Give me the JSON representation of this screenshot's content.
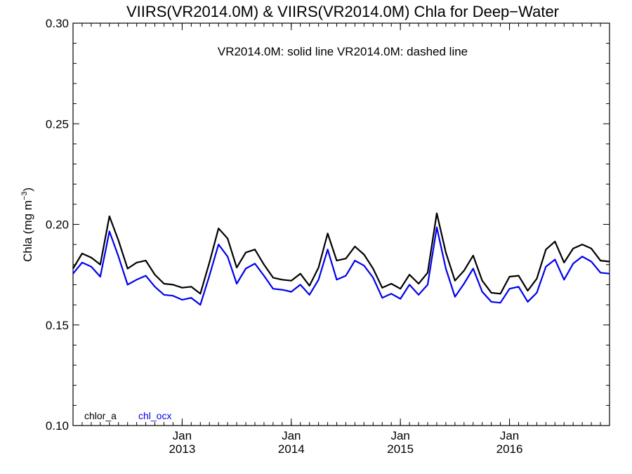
{
  "chart_data": {
    "type": "line",
    "title": "VIIRS(VR2014.0M) & VIIRS(VR2014.0M)  Chla for Deep−Water",
    "subtitle": "VR2014.0M: solid line   VR2014.0M: dashed line",
    "ylabel_main": "Chla (mg m",
    "ylabel_sup": "−3",
    "ylabel_close": ")",
    "ylim": [
      0.1,
      0.3
    ],
    "yticks": [
      "0.10",
      "0.15",
      "0.20",
      "0.25",
      "0.30"
    ],
    "xlim": [
      "2012-01",
      "2016-12"
    ],
    "xticks": [
      {
        "month": "Jan",
        "year": "2013",
        "date": "2013-01"
      },
      {
        "month": "Jan",
        "year": "2014",
        "date": "2014-01"
      },
      {
        "month": "Jan",
        "year": "2015",
        "date": "2015-01"
      },
      {
        "month": "Jan",
        "year": "2016",
        "date": "2016-01"
      }
    ],
    "x": [
      "2012-01",
      "2012-02",
      "2012-03",
      "2012-04",
      "2012-05",
      "2012-06",
      "2012-07",
      "2012-08",
      "2012-09",
      "2012-10",
      "2012-11",
      "2012-12",
      "2013-01",
      "2013-02",
      "2013-03",
      "2013-04",
      "2013-05",
      "2013-06",
      "2013-07",
      "2013-08",
      "2013-09",
      "2013-10",
      "2013-11",
      "2013-12",
      "2014-01",
      "2014-02",
      "2014-03",
      "2014-04",
      "2014-05",
      "2014-06",
      "2014-07",
      "2014-08",
      "2014-09",
      "2014-10",
      "2014-11",
      "2014-12",
      "2015-01",
      "2015-02",
      "2015-03",
      "2015-04",
      "2015-05",
      "2015-06",
      "2015-07",
      "2015-08",
      "2015-09",
      "2015-10",
      "2015-11",
      "2015-12",
      "2016-01",
      "2016-02",
      "2016-03",
      "2016-04",
      "2016-05",
      "2016-06",
      "2016-07",
      "2016-08",
      "2016-09",
      "2016-10",
      "2016-11",
      "2016-12"
    ],
    "series": [
      {
        "name": "chlor_a",
        "color": "#000000",
        "values": [
          0.178,
          0.1855,
          0.1835,
          0.18,
          0.204,
          0.192,
          0.178,
          0.181,
          0.182,
          0.175,
          0.1705,
          0.17,
          0.1685,
          0.169,
          0.1655,
          0.181,
          0.198,
          0.193,
          0.1785,
          0.186,
          0.1875,
          0.18,
          0.1735,
          0.1725,
          0.172,
          0.1755,
          0.1695,
          0.1785,
          0.1955,
          0.182,
          0.183,
          0.189,
          0.185,
          0.178,
          0.1685,
          0.1705,
          0.168,
          0.175,
          0.1705,
          0.176,
          0.2055,
          0.186,
          0.172,
          0.177,
          0.1845,
          0.172,
          0.166,
          0.1655,
          0.174,
          0.1745,
          0.167,
          0.173,
          0.1875,
          0.1915,
          0.181,
          0.188,
          0.19,
          0.188,
          0.182,
          0.1815
        ]
      },
      {
        "name": "chl_ocx",
        "color": "#0000ee",
        "values": [
          0.1755,
          0.181,
          0.179,
          0.174,
          0.1965,
          0.184,
          0.17,
          0.1725,
          0.1745,
          0.169,
          0.165,
          0.1645,
          0.1625,
          0.1635,
          0.16,
          0.1745,
          0.19,
          0.184,
          0.1705,
          0.178,
          0.1805,
          0.1745,
          0.168,
          0.1675,
          0.1665,
          0.17,
          0.165,
          0.1725,
          0.1875,
          0.1725,
          0.1745,
          0.182,
          0.1795,
          0.1735,
          0.1635,
          0.1655,
          0.163,
          0.17,
          0.165,
          0.17,
          0.1985,
          0.178,
          0.164,
          0.1705,
          0.178,
          0.1665,
          0.1615,
          0.161,
          0.168,
          0.169,
          0.1615,
          0.166,
          0.179,
          0.1825,
          0.1725,
          0.1805,
          0.184,
          0.1815,
          0.176,
          0.1755
        ]
      }
    ],
    "legend_position": "bottom-left",
    "grid": false
  }
}
